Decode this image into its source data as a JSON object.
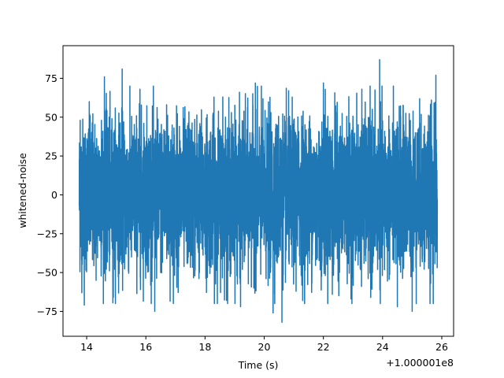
{
  "chart_data": {
    "type": "line",
    "xlabel": "Time (s)",
    "ylabel": "whitened-noise",
    "x_offset_label": "+1.000001e8",
    "xlim": [
      13.2,
      26.4
    ],
    "ylim": [
      -91,
      96
    ],
    "x_ticks": [
      14,
      16,
      18,
      20,
      22,
      24,
      26
    ],
    "x_tick_labels": [
      "14",
      "16",
      "18",
      "20",
      "22",
      "24",
      "26"
    ],
    "y_ticks": [
      -75,
      -50,
      -25,
      0,
      25,
      50,
      75
    ],
    "y_tick_labels": [
      "−75",
      "−50",
      "−25",
      "0",
      "25",
      "50",
      "75"
    ],
    "grid": false,
    "series": [
      {
        "color": "#1f77b4",
        "x_range": [
          13.75,
          25.85
        ],
        "peaks": [
          {
            "x": 13.78,
            "y": 48
          },
          {
            "x": 13.83,
            "y": -42
          },
          {
            "x": 13.92,
            "y": -71
          },
          {
            "x": 14.1,
            "y": 52
          },
          {
            "x": 14.5,
            "y": 48
          },
          {
            "x": 14.6,
            "y": 76
          },
          {
            "x": 14.9,
            "y": -66
          },
          {
            "x": 15.2,
            "y": 81
          },
          {
            "x": 15.8,
            "y": 68
          },
          {
            "x": 16.3,
            "y": -75
          },
          {
            "x": 16.7,
            "y": 58
          },
          {
            "x": 18.6,
            "y": 63
          },
          {
            "x": 19.2,
            "y": -72
          },
          {
            "x": 19.7,
            "y": 72
          },
          {
            "x": 20.3,
            "y": -76
          },
          {
            "x": 20.6,
            "y": -82
          },
          {
            "x": 21.3,
            "y": -68
          },
          {
            "x": 22.0,
            "y": 72
          },
          {
            "x": 22.3,
            "y": -64
          },
          {
            "x": 23.3,
            "y": 68
          },
          {
            "x": 23.6,
            "y": -66
          },
          {
            "x": 23.9,
            "y": 87
          },
          {
            "x": 24.5,
            "y": -72
          },
          {
            "x": 25.0,
            "y": -75
          },
          {
            "x": 25.65,
            "y": 61
          },
          {
            "x": 25.8,
            "y": 77
          }
        ]
      }
    ]
  }
}
